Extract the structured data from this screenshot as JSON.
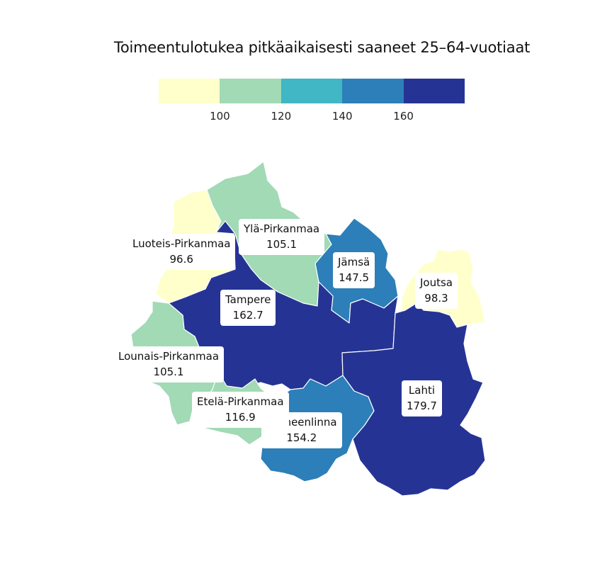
{
  "title": "Toimeentulotukea pitkäaikaisesti saaneet 25–64-vuotiaat",
  "legend": {
    "colors": [
      "#ffffcc",
      "#a1dab4",
      "#41b6c4",
      "#2c7fb8",
      "#253494"
    ],
    "ticks": [
      "100",
      "120",
      "140",
      "160"
    ]
  },
  "regions": {
    "luoteis_pirkanmaa": {
      "name": "Luoteis-Pirkanmaa",
      "value": "96.6",
      "color": "#ffffcc"
    },
    "yla_pirkanmaa": {
      "name": "Ylä-Pirkanmaa",
      "value": "105.1",
      "color": "#a1dab4"
    },
    "jamsa": {
      "name": "Jämsä",
      "value": "147.5",
      "color": "#2c7fb8"
    },
    "joutsa": {
      "name": "Joutsa",
      "value": "98.3",
      "color": "#ffffcc"
    },
    "tampere": {
      "name": "Tampere",
      "value": "162.7",
      "color": "#253494"
    },
    "lounais_pirkanmaa": {
      "name": "Lounais-Pirkanmaa",
      "value": "105.1",
      "color": "#a1dab4"
    },
    "etela_pirkanmaa": {
      "name": "Etelä-Pirkanmaa",
      "value": "116.9",
      "color": "#a1dab4"
    },
    "hameenlinna": {
      "name": "Hämeenlinna",
      "value": "154.2",
      "color": "#2c7fb8"
    },
    "lahti": {
      "name": "Lahti",
      "value": "179.7",
      "color": "#253494"
    }
  }
}
